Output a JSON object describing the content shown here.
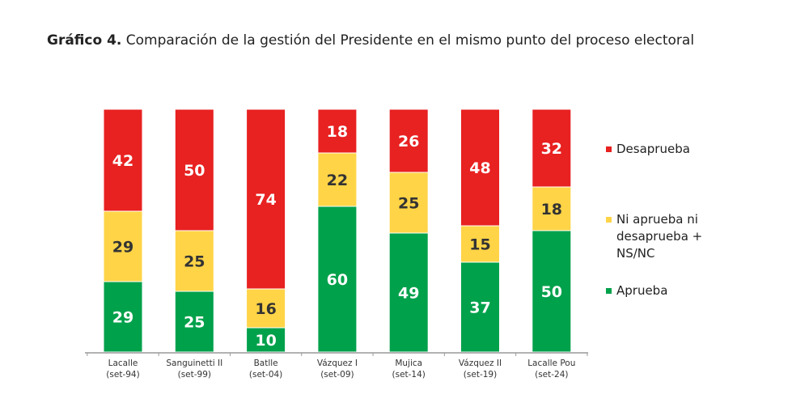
{
  "chart_data": {
    "type": "bar",
    "stacked": true,
    "title_bold": "Gráfico 4.",
    "title": "Comparación de la gestión del Presidente en el mismo punto del proceso electoral",
    "categories": [
      [
        "Lacalle",
        "(set-94)"
      ],
      [
        "Sanguinetti II",
        "(set-99)"
      ],
      [
        "Batlle",
        "(set-04)"
      ],
      [
        "Vázquez I",
        "(set-09)"
      ],
      [
        "Mujica",
        "(set-14)"
      ],
      [
        "Vázquez II",
        "(set-19)"
      ],
      [
        "Lacalle Pou",
        "(set-24)"
      ]
    ],
    "series": [
      {
        "name": "Aprueba",
        "color": "#00a14b",
        "values": [
          29,
          25,
          10,
          60,
          49,
          37,
          50
        ]
      },
      {
        "name": "Ni aprueba ni desaprueba + NS/NC",
        "color": "#ffd447",
        "values": [
          29,
          25,
          16,
          22,
          25,
          15,
          18
        ]
      },
      {
        "name": "Desaprueba",
        "color": "#e82121",
        "values": [
          42,
          50,
          74,
          18,
          26,
          48,
          32
        ]
      }
    ],
    "ylim": [
      0,
      100
    ],
    "legend_position": "right",
    "grid": false
  },
  "legend": {
    "desaprueba": "Desaprueba",
    "ni": [
      "Ni aprueba ni",
      "desaprueba +",
      "NS/NC"
    ],
    "aprueba": "Aprueba"
  }
}
